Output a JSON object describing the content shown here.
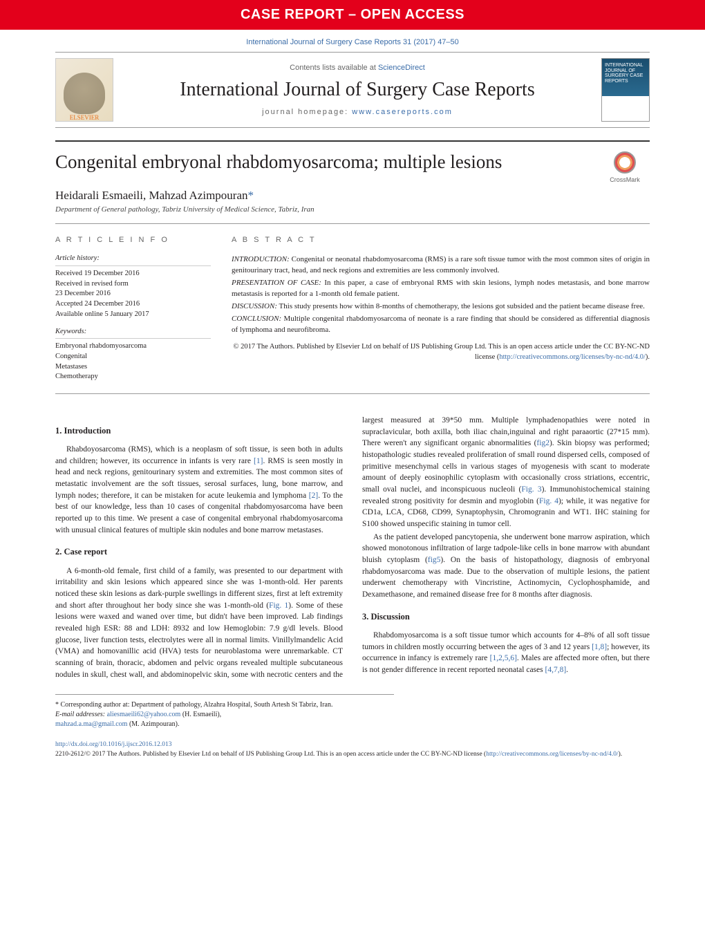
{
  "banner": "CASE REPORT – OPEN ACCESS",
  "citation": "International Journal of Surgery Case Reports 31 (2017) 47–50",
  "header": {
    "contents_prefix": "Contents lists available at ",
    "contents_link": "ScienceDirect",
    "journal": "International Journal of Surgery Case Reports",
    "homepage_prefix": "journal homepage: ",
    "homepage_link": "www.casereports.com",
    "elsevier": "ELSEVIER",
    "cover_text": "INTERNATIONAL JOURNAL OF SURGERY CASE REPORTS"
  },
  "title": "Congenital embryonal rhabdomyosarcoma; multiple lesions",
  "crossmark": "CrossMark",
  "authors": "Heidarali Esmaeili, Mahzad Azimpouran",
  "affiliation": "Department of General pathology, Tabriz University of Medical Science, Tabriz, Iran",
  "info": {
    "heading": "A R T I C L E   I N F O",
    "history_label": "Article history:",
    "history": [
      "Received 19 December 2016",
      "Received in revised form",
      "23 December 2016",
      "Accepted 24 December 2016",
      "Available online 5 January 2017"
    ],
    "keywords_label": "Keywords:",
    "keywords": [
      "Embryonal rhabdomyosarcoma",
      "Congenital",
      "Metastases",
      "Chemotherapy"
    ]
  },
  "abstract": {
    "heading": "A B S T R A C T",
    "intro_label": "INTRODUCTION:",
    "intro": " Congenital or neonatal rhabdomyosarcoma (RMS) is a rare soft tissue tumor with the most common sites of origin in genitourinary tract, head, and neck regions and extremities are less commonly involved.",
    "case_label": "PRESENTATION OF CASE:",
    "case": " In this paper, a case of embryonal RMS with skin lesions, lymph nodes metastasis, and bone marrow metastasis is reported for a 1-month old female patient.",
    "disc_label": "DISCUSSION:",
    "disc": " This study presents how within 8-months of chemotherapy, the lesions got subsided and the patient became disease free.",
    "conc_label": "CONCLUSION:",
    "conc": " Multiple congenital rhabdomyosarcoma of neonate is a rare finding that should be considered as differential diagnosis of lymphoma and neurofibroma.",
    "copyright": "© 2017 The Authors. Published by Elsevier Ltd on behalf of IJS Publishing Group Ltd. This is an open access article under the CC BY-NC-ND license (",
    "cc_link": "http://creativecommons.org/licenses/by-nc-nd/4.0/",
    "copyright_close": ")."
  },
  "sections": {
    "s1_title": "1.  Introduction",
    "s1_p1a": "Rhabdoyosarcoma (RMS), which is a neoplasm of soft tissue, is seen both in adults and children; however, its occurrence in infants is very rare ",
    "ref1": "[1]",
    "s1_p1b": ". RMS is seen mostly in head and neck regions, genitourinary system and extremities. The most common sites of metastatic involvement are the soft tissues, serosal surfaces, lung, bone marrow, and lymph nodes; therefore, it can be mistaken for acute leukemia and lymphoma ",
    "ref2": "[2]",
    "s1_p1c": ". To the best of our knowledge, less than 10 cases of congenital rhabdomyosarcoma have been reported up to this time. We present a case of congenital embryonal rhabdomyosarcoma with unusual clinical features of multiple skin nodules and bone marrow metastases.",
    "s2_title": "2.  Case report",
    "s2_p1a": "A 6-month-old female, first child of a family, was presented to our department with irritability and skin lesions which appeared since she was 1-month-old. Her parents noticed these skin lesions as dark-purple swellings in different sizes, first at left extremity and short after throughout her body since she was 1-month-old (",
    "fig1": "Fig. 1",
    "s2_p1b": "). Some of these lesions were waxed and waned over time, but didn't have been improved. Lab findings revealed high ESR: 88 and LDH: 8932 and low Hemoglobin: 7.9 g/dl levels. Blood glucose, liver function tests, electrolytes were all in normal limits. Vinillylmandelic Acid (VMA) and homovanillic acid (HVA) tests for neuroblastoma were unremarkable. CT scanning of brain, thoracic, abdomen and pelvic organs revealed multiple subcutaneous nodules in skull, chest wall, and abdominopelvic skin, some with necrotic centers and the largest measured at 39*50 mm. Multiple lymphadenopathies were noted in supraclavicular, both axilla, both iliac chain,inguinal and right paraaortic (27*15 mm). There weren't any significant organic abnormalities (",
    "fig2": "fig2",
    "s2_p1c": "). Skin biopsy was performed; histopathologic studies revealed proliferation of small round dispersed cells, composed of primitive mesenchymal cells in various stages of myogenesis with scant to moderate amount of deeply eosinophilic cytoplasm with occasionally cross striations, eccentric, small oval nuclei, and inconspicuous nucleoli (",
    "fig3": "Fig. 3",
    "s2_p1d": "). Immunohistochemical staining revealed strong positivity for desmin and myoglobin (",
    "fig4": "Fig. 4",
    "s2_p1e": "); while, it was negative for CD1a, LCA, CD68, CD99, Synaptophysin, Chromogranin and WT1. IHC staining for S100 showed unspecific staining in tumor cell.",
    "s2_p2a": "As the patient developed pancytopenia, she underwent bone marrow aspiration, which showed monotonous infiltration of large tadpole-like cells in bone marrow with abundant bluish cytoplasm (",
    "fig5": "fig5",
    "s2_p2b": "). On the basis of histopathology, diagnosis of embryonal rhabdomyosarcoma was made. Due to the observation of multiple lesions, the patient underwent chemotherapy with Vincristine, Actinomycin, Cyclophosphamide, and Dexamethasone, and remained disease free for 8 months after diagnosis.",
    "s3_title": "3.  Discussion",
    "s3_p1a": "Rhabdomyosarcoma is a soft tissue tumor which accounts for 4–8% of all soft tissue tumors in children mostly occurring between the ages of 3 and 12 years ",
    "ref18": "[1,8]",
    "s3_p1b": "; however, its occurrence in infancy is extremely rare ",
    "ref1256": "[1,2,5,6]",
    "s3_p1c": ". Males are affected more often, but there is not gender difference in recent reported neonatal cases ",
    "ref478": "[4,7,8]",
    "s3_p1d": "."
  },
  "footnotes": {
    "corr": "* Corresponding author at: Department of pathology, Alzahra Hospital, South Artesh St Tabriz, Iran.",
    "email_label": "E-mail addresses: ",
    "email1": "aliesmaeili62@yahoo.com",
    "email1_who": " (H. Esmaeili),",
    "email2": "mahzad.a.ma@gmail.com",
    "email2_who": " (M. Azimpouran)."
  },
  "footer": {
    "doi": "http://dx.doi.org/10.1016/j.ijscr.2016.12.013",
    "line2a": "2210-2612/© 2017 The Authors. Published by Elsevier Ltd on behalf of IJS Publishing Group Ltd. This is an open access article under the CC BY-NC-ND license (",
    "cc_link": "http://creativecommons.org/licenses/by-nc-nd/4.0/",
    "line2b": ")."
  },
  "colors": {
    "red": "#e3001b",
    "link": "#3a6ca8",
    "text": "#231f20"
  }
}
